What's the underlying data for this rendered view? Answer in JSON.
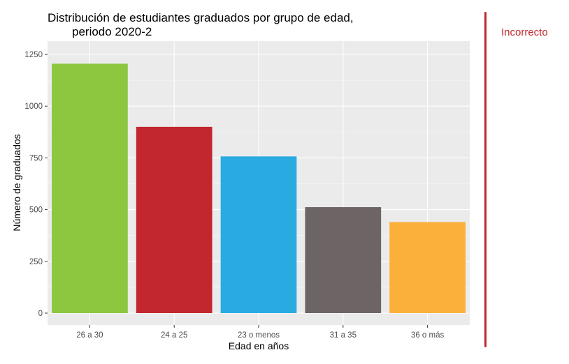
{
  "chart_data": {
    "type": "bar",
    "title_line1": "Distribución de estudiantes graduados por grupo de edad,",
    "title_line2": "periodo 2020-2",
    "xlabel": "Edad en años",
    "ylabel": "Número de graduados",
    "categories": [
      "26 a 30",
      "24 a 25",
      "23 o menos",
      "31 a 35",
      "36 o más"
    ],
    "values": [
      1205,
      900,
      757,
      512,
      440
    ],
    "colors": [
      "#8dc63f",
      "#c1272d",
      "#29abe2",
      "#6d6565",
      "#fbb03b"
    ],
    "ylim": [
      0,
      1250
    ],
    "yticks": [
      0,
      250,
      500,
      750,
      1000,
      1250
    ],
    "grid": true,
    "background": "#ebebeb"
  },
  "annotation": {
    "label": "Incorrecto",
    "color": "#c1272d"
  }
}
